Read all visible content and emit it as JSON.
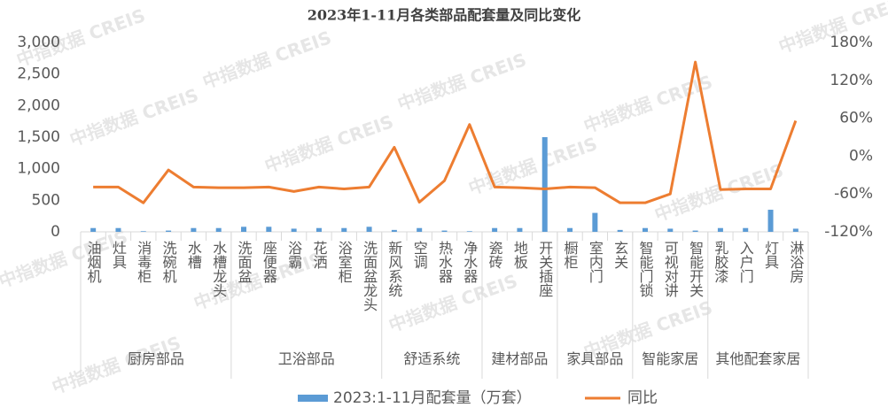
{
  "chart_data": {
    "type": "bar-line",
    "title": "2023年1-11月各类部品配套量及同比变化",
    "watermark": "中指数据 CREIS",
    "groups": [
      {
        "name": "厨房部品",
        "categories": [
          "油烟机",
          "灶具",
          "消毒柜",
          "洗碗机",
          "水槽",
          "水槽龙头"
        ]
      },
      {
        "name": "卫浴部品",
        "categories": [
          "洗面盆",
          "座便器",
          "浴霸",
          "花洒",
          "浴室柜",
          "洗面盆龙头"
        ]
      },
      {
        "name": "舒适系统",
        "categories": [
          "新风系统",
          "空调",
          "热水器",
          "净水器"
        ]
      },
      {
        "name": "建材部品",
        "categories": [
          "瓷砖",
          "地板",
          "开关插座"
        ]
      },
      {
        "name": "家具部品",
        "categories": [
          "橱柜",
          "室内门",
          "玄关"
        ]
      },
      {
        "name": "智能家居",
        "categories": [
          "智能门锁",
          "可视对讲",
          "智能开关"
        ]
      },
      {
        "name": "其他配套家居",
        "categories": [
          "乳胶漆",
          "入户门",
          "灯具",
          "淋浴房"
        ]
      }
    ],
    "series": [
      {
        "name": "2023:1-11月配套量（万套）",
        "type": "bar",
        "color": "#5b9bd5",
        "values": [
          60,
          60,
          10,
          20,
          60,
          60,
          80,
          80,
          50,
          60,
          60,
          80,
          30,
          60,
          20,
          10,
          60,
          60,
          1500,
          60,
          300,
          30,
          60,
          50,
          20,
          60,
          60,
          350,
          50
        ]
      },
      {
        "name": "同比",
        "type": "line",
        "axis": "y2",
        "color": "#ed7d31",
        "values": [
          -49,
          -49,
          -74,
          -22,
          -49,
          -50,
          -50,
          -49,
          -56,
          -49,
          -52,
          -49,
          14,
          -73,
          -39,
          50,
          -49,
          -50,
          -52,
          -49,
          -50,
          -74,
          -74,
          -60,
          149,
          -53,
          -52,
          -52,
          56
        ]
      }
    ],
    "ylim": [
      0,
      3000
    ],
    "yticks": [
      0,
      500,
      {
        "value": 1000,
        "label": "1,000"
      },
      {
        "value": 1500,
        "label": "1,500"
      },
      {
        "value": 2000,
        "label": "2,000"
      },
      {
        "value": 2500,
        "label": "2,500"
      },
      {
        "value": 3000,
        "label": "3,000"
      }
    ],
    "y2lim": [
      -120,
      180
    ],
    "y2ticks": [
      {
        "value": -120,
        "label": "-120%"
      },
      {
        "value": -60,
        "label": "-60%"
      },
      {
        "value": 0,
        "label": "0%"
      },
      {
        "value": 60,
        "label": "60%"
      },
      {
        "value": 120,
        "label": "120%"
      },
      {
        "value": 180,
        "label": "180%"
      }
    ],
    "legend": "bottom"
  }
}
